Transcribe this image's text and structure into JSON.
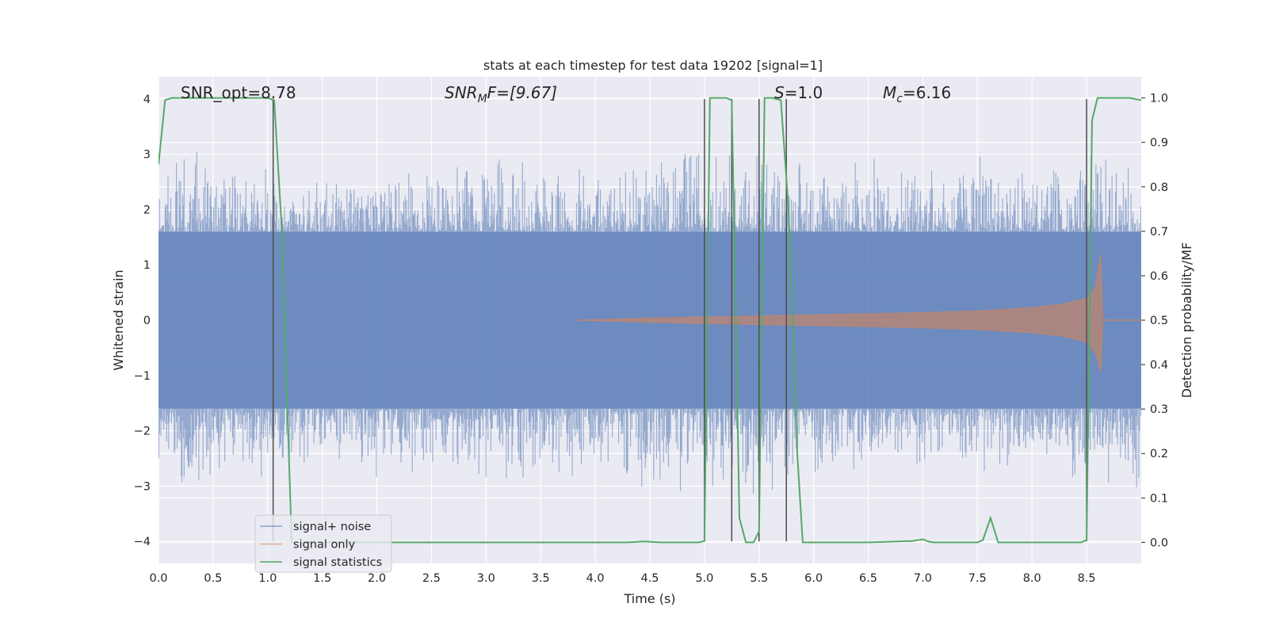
{
  "chart_data": {
    "type": "line",
    "title": "stats at each timestep for test data 19202 [signal=1]",
    "xlabel": "Time (s)",
    "ylabel_left": "Whitened strain",
    "ylabel_right": "Detection probability/MF",
    "xlim": [
      0.0,
      9.0
    ],
    "ylim_left": [
      -4.4,
      4.4
    ],
    "ylim_right": [
      -0.0474,
      1.0474
    ],
    "x_ticks": [
      "0.0",
      "0.5",
      "1.0",
      "1.5",
      "2.0",
      "2.5",
      "3.0",
      "3.5",
      "4.0",
      "4.5",
      "5.0",
      "5.5",
      "6.0",
      "6.5",
      "7.0",
      "7.5",
      "8.0",
      "8.5"
    ],
    "y_ticks_left": [
      "−4",
      "−3",
      "−2",
      "−1",
      "0",
      "1",
      "2",
      "3",
      "4"
    ],
    "y_ticks_right": [
      "0.0",
      "0.1",
      "0.2",
      "0.3",
      "0.4",
      "0.5",
      "0.6",
      "0.7",
      "0.8",
      "0.9",
      "1.0"
    ],
    "grid": true,
    "legend_placement": "lower left",
    "legend": [
      {
        "label": "signal+ noise",
        "color": "#4c72b0"
      },
      {
        "label": "signal only",
        "color": "#dd8452"
      },
      {
        "label": "signal statistics",
        "color": "#55a868"
      }
    ],
    "annotations": {
      "snr_opt_text": "SNR_opt=8.78",
      "snr_mf_prefix": "SNR",
      "snr_mf_sub": "M",
      "snr_mf_rest": "F=[9.67]",
      "s_label": "S",
      "s_value": "=1.0",
      "mc_label": "M",
      "mc_sub": "c",
      "mc_value": "=6.16"
    },
    "series": [
      {
        "name": "signal+ noise",
        "color": "#4c72b0",
        "envelope_x": [
          0.0,
          0.1,
          0.3,
          0.5,
          0.7,
          1.0,
          1.3,
          1.6,
          2.0,
          2.5,
          3.0,
          3.5,
          4.0,
          4.5,
          5.0,
          5.5,
          6.0,
          6.5,
          7.0,
          7.5,
          8.0,
          8.5,
          9.0
        ],
        "envelope_upper": [
          2.4,
          2.9,
          3.2,
          2.7,
          2.8,
          2.9,
          2.8,
          2.7,
          2.9,
          2.8,
          3.0,
          2.9,
          2.8,
          3.2,
          3.3,
          3.1,
          2.9,
          3.0,
          2.8,
          3.1,
          2.8,
          3.2,
          2.7
        ],
        "envelope_lower": [
          -2.7,
          -2.8,
          -3.3,
          -2.9,
          -2.8,
          -3.0,
          -2.9,
          -2.6,
          -3.0,
          -2.8,
          -3.0,
          -3.0,
          -2.7,
          -3.2,
          -3.1,
          -3.3,
          -2.9,
          -2.9,
          -2.8,
          -3.0,
          -2.7,
          -3.0,
          -3.1
        ],
        "core_amplitude": 1.6
      },
      {
        "name": "signal only",
        "color": "#dd8452",
        "envelope_x": [
          3.8,
          4.5,
          5.0,
          5.5,
          6.0,
          6.5,
          7.0,
          7.5,
          8.0,
          8.3,
          8.5,
          8.58,
          8.63,
          8.65
        ],
        "envelope_amplitude": [
          0.0,
          0.04,
          0.06,
          0.08,
          0.1,
          0.12,
          0.14,
          0.17,
          0.23,
          0.3,
          0.4,
          0.6,
          1.2,
          0.0
        ]
      },
      {
        "name": "signal statistics",
        "color": "#55a868",
        "x": [
          0.0,
          0.06,
          0.12,
          0.2,
          0.5,
          0.8,
          1.0,
          1.06,
          1.13,
          1.18,
          1.22,
          1.5,
          2.0,
          3.0,
          4.0,
          4.3,
          4.45,
          4.6,
          4.95,
          5.0,
          5.05,
          5.1,
          5.2,
          5.25,
          5.28,
          5.32,
          5.38,
          5.45,
          5.5,
          5.55,
          5.62,
          5.7,
          5.77,
          5.85,
          5.9,
          6.0,
          6.5,
          6.9,
          7.0,
          7.05,
          7.1,
          7.5,
          7.55,
          7.62,
          7.69,
          7.75,
          8.0,
          8.45,
          8.5,
          8.55,
          8.6,
          8.7,
          8.9,
          9.0
        ],
        "y": [
          0.85,
          0.995,
          1.0,
          1.0,
          1.0,
          1.0,
          1.0,
          0.995,
          0.7,
          0.3,
          0.0,
          0.0,
          0.0,
          0.0,
          0.0,
          0.0,
          0.002,
          0.0,
          0.0,
          0.003,
          1.0,
          1.0,
          1.0,
          0.995,
          0.6,
          0.055,
          0.0,
          0.0,
          0.025,
          1.0,
          1.0,
          0.995,
          0.75,
          0.2,
          0.0,
          0.0,
          0.0,
          0.003,
          0.007,
          0.002,
          0.0,
          0.0,
          0.005,
          0.055,
          0.0,
          0.0,
          0.0,
          0.0,
          0.005,
          0.95,
          1.0,
          1.0,
          1.0,
          0.995
        ]
      }
    ],
    "vertical_lines_x": [
      1.05,
      5.0,
      5.25,
      5.5,
      5.75,
      8.5
    ],
    "vertical_lines_color": "#4d4d4d"
  }
}
